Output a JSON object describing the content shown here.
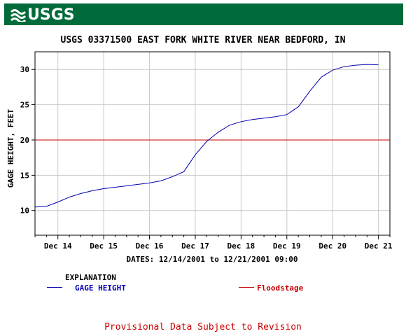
{
  "header": {
    "logo_text": "USGS",
    "logo_icon": "usgs-wave-icon",
    "color": "#006b3a"
  },
  "chart_data": {
    "type": "line",
    "title": "USGS 03371500 EAST FORK WHITE RIVER NEAR BEDFORD, IN",
    "xlabel": "DATES: 12/14/2001 to 12/21/2001 09:00",
    "ylabel": "GAGE HEIGHT, FEET",
    "x_ticks": [
      "Dec 14",
      "Dec 15",
      "Dec 16",
      "Dec 17",
      "Dec 18",
      "Dec 19",
      "Dec 20",
      "Dec 21"
    ],
    "x_unit": "days since Dec 13 00:00",
    "xlim": [
      13.5,
      21.25
    ],
    "ylim": [
      6.5,
      32.5
    ],
    "y_ticks": [
      10,
      15,
      20,
      25,
      30
    ],
    "grid": true,
    "series": [
      {
        "name": "GAGE HEIGHT",
        "color": "#0000b0",
        "x": [
          13.5,
          13.75,
          14.0,
          14.25,
          14.5,
          14.75,
          15.0,
          15.25,
          15.5,
          15.75,
          16.0,
          16.25,
          16.5,
          16.75,
          17.0,
          17.25,
          17.5,
          17.75,
          18.0,
          18.25,
          18.5,
          18.75,
          19.0,
          19.25,
          19.5,
          19.75,
          20.0,
          20.25,
          20.5,
          20.75,
          21.0
        ],
        "y": [
          10.5,
          10.6,
          11.2,
          11.9,
          12.4,
          12.8,
          13.1,
          13.3,
          13.5,
          13.7,
          13.9,
          14.2,
          14.8,
          15.5,
          17.9,
          19.8,
          21.1,
          22.1,
          22.6,
          22.9,
          23.1,
          23.3,
          23.6,
          24.7,
          26.9,
          28.9,
          29.9,
          30.4,
          30.6,
          30.7,
          30.65
        ]
      }
    ],
    "reference_lines": [
      {
        "name": "Floodstage",
        "y": 20,
        "color": "#cc0000"
      }
    ]
  },
  "legend": {
    "title": "EXPLANATION",
    "gage_label": "GAGE HEIGHT",
    "gage_color": "#0000b0",
    "flood_label": "Floodstage",
    "flood_color": "#cc0000"
  },
  "footer": {
    "provisional": "Provisional Data Subject to Revision"
  }
}
